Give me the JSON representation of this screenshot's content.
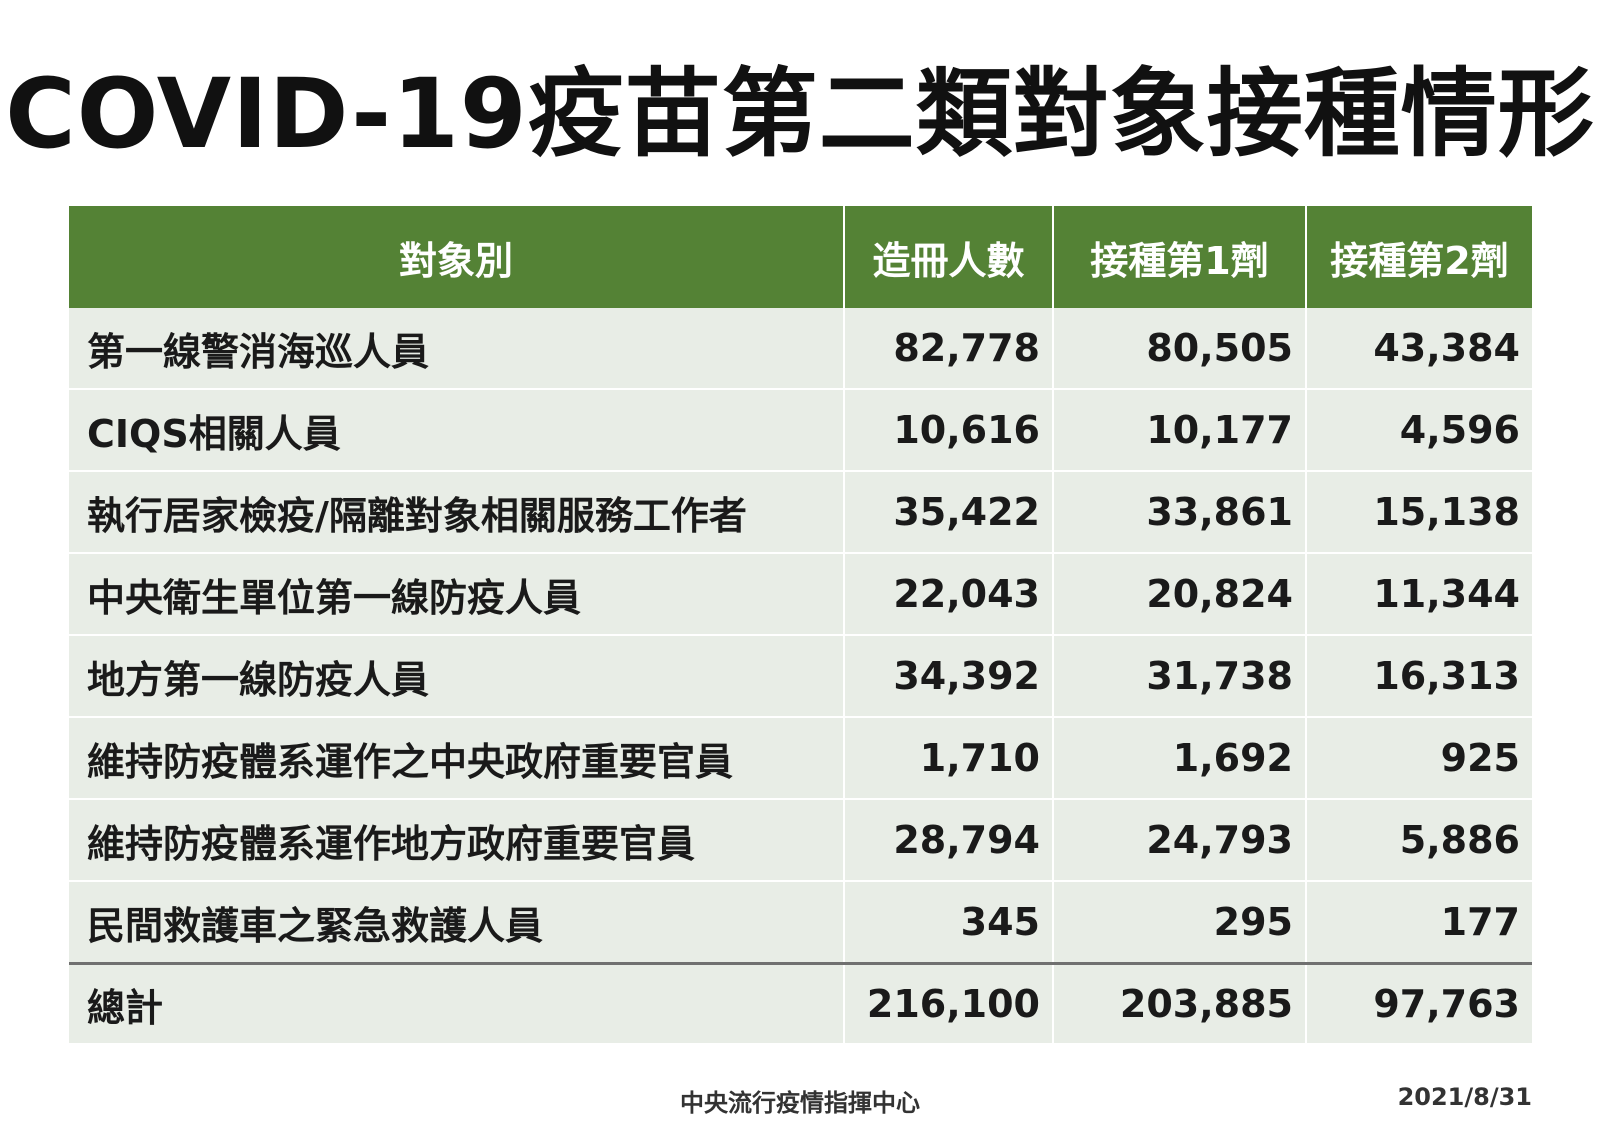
{
  "title": "COVID-19疫苗第二類對象接種情形",
  "table": {
    "headers": [
      "對象別",
      "造冊人數",
      "接種第1劑",
      "接種第2劑"
    ],
    "rows": [
      {
        "name": "第一線警消海巡人員",
        "registered": "82,778",
        "dose1": "80,505",
        "dose2": "43,384"
      },
      {
        "name": "CIQS相關人員",
        "registered": "10,616",
        "dose1": "10,177",
        "dose2": "4,596"
      },
      {
        "name": "執行居家檢疫/隔離對象相關服務工作者",
        "registered": "35,422",
        "dose1": "33,861",
        "dose2": "15,138"
      },
      {
        "name": "中央衛生單位第一線防疫人員",
        "registered": "22,043",
        "dose1": "20,824",
        "dose2": "11,344"
      },
      {
        "name": "地方第一線防疫人員",
        "registered": "34,392",
        "dose1": "31,738",
        "dose2": "16,313"
      },
      {
        "name": "維持防疫體系運作之中央政府重要官員",
        "registered": "1,710",
        "dose1": "1,692",
        "dose2": "925"
      },
      {
        "name": "維持防疫體系運作地方政府重要官員",
        "registered": "28,794",
        "dose1": "24,793",
        "dose2": "5,886"
      },
      {
        "name": "民間救護車之緊急救護人員",
        "registered": "345",
        "dose1": "295",
        "dose2": "177"
      }
    ],
    "total": {
      "name": "總計",
      "registered": "216,100",
      "dose1": "203,885",
      "dose2": "97,763"
    }
  },
  "footer": {
    "source": "中央流行疫情指揮中心",
    "date": "2021/8/31"
  },
  "colors": {
    "header_bg": "#548235",
    "row_bg": "#e8ede6"
  }
}
